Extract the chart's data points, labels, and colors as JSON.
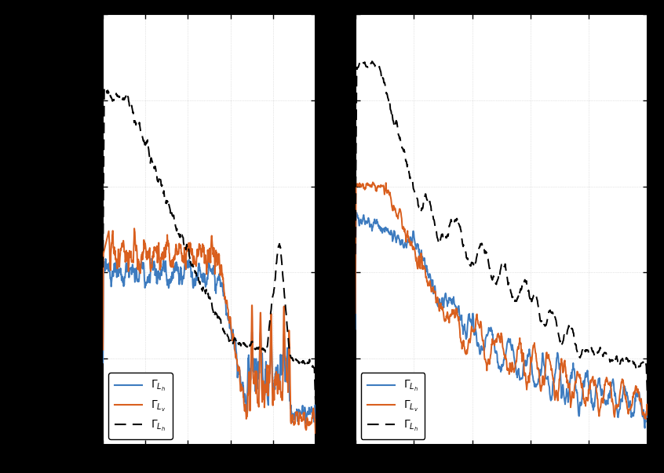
{
  "fig_bg_color": "#000000",
  "subplot_bg_color": "#ffffff",
  "grid_color": "#cccccc",
  "blue_color": "#3d7bbf",
  "orange_color": "#d95f1e",
  "black_color": "#000000",
  "seed": 12345,
  "linewidth": 1.4,
  "legend_fontsize": 10
}
